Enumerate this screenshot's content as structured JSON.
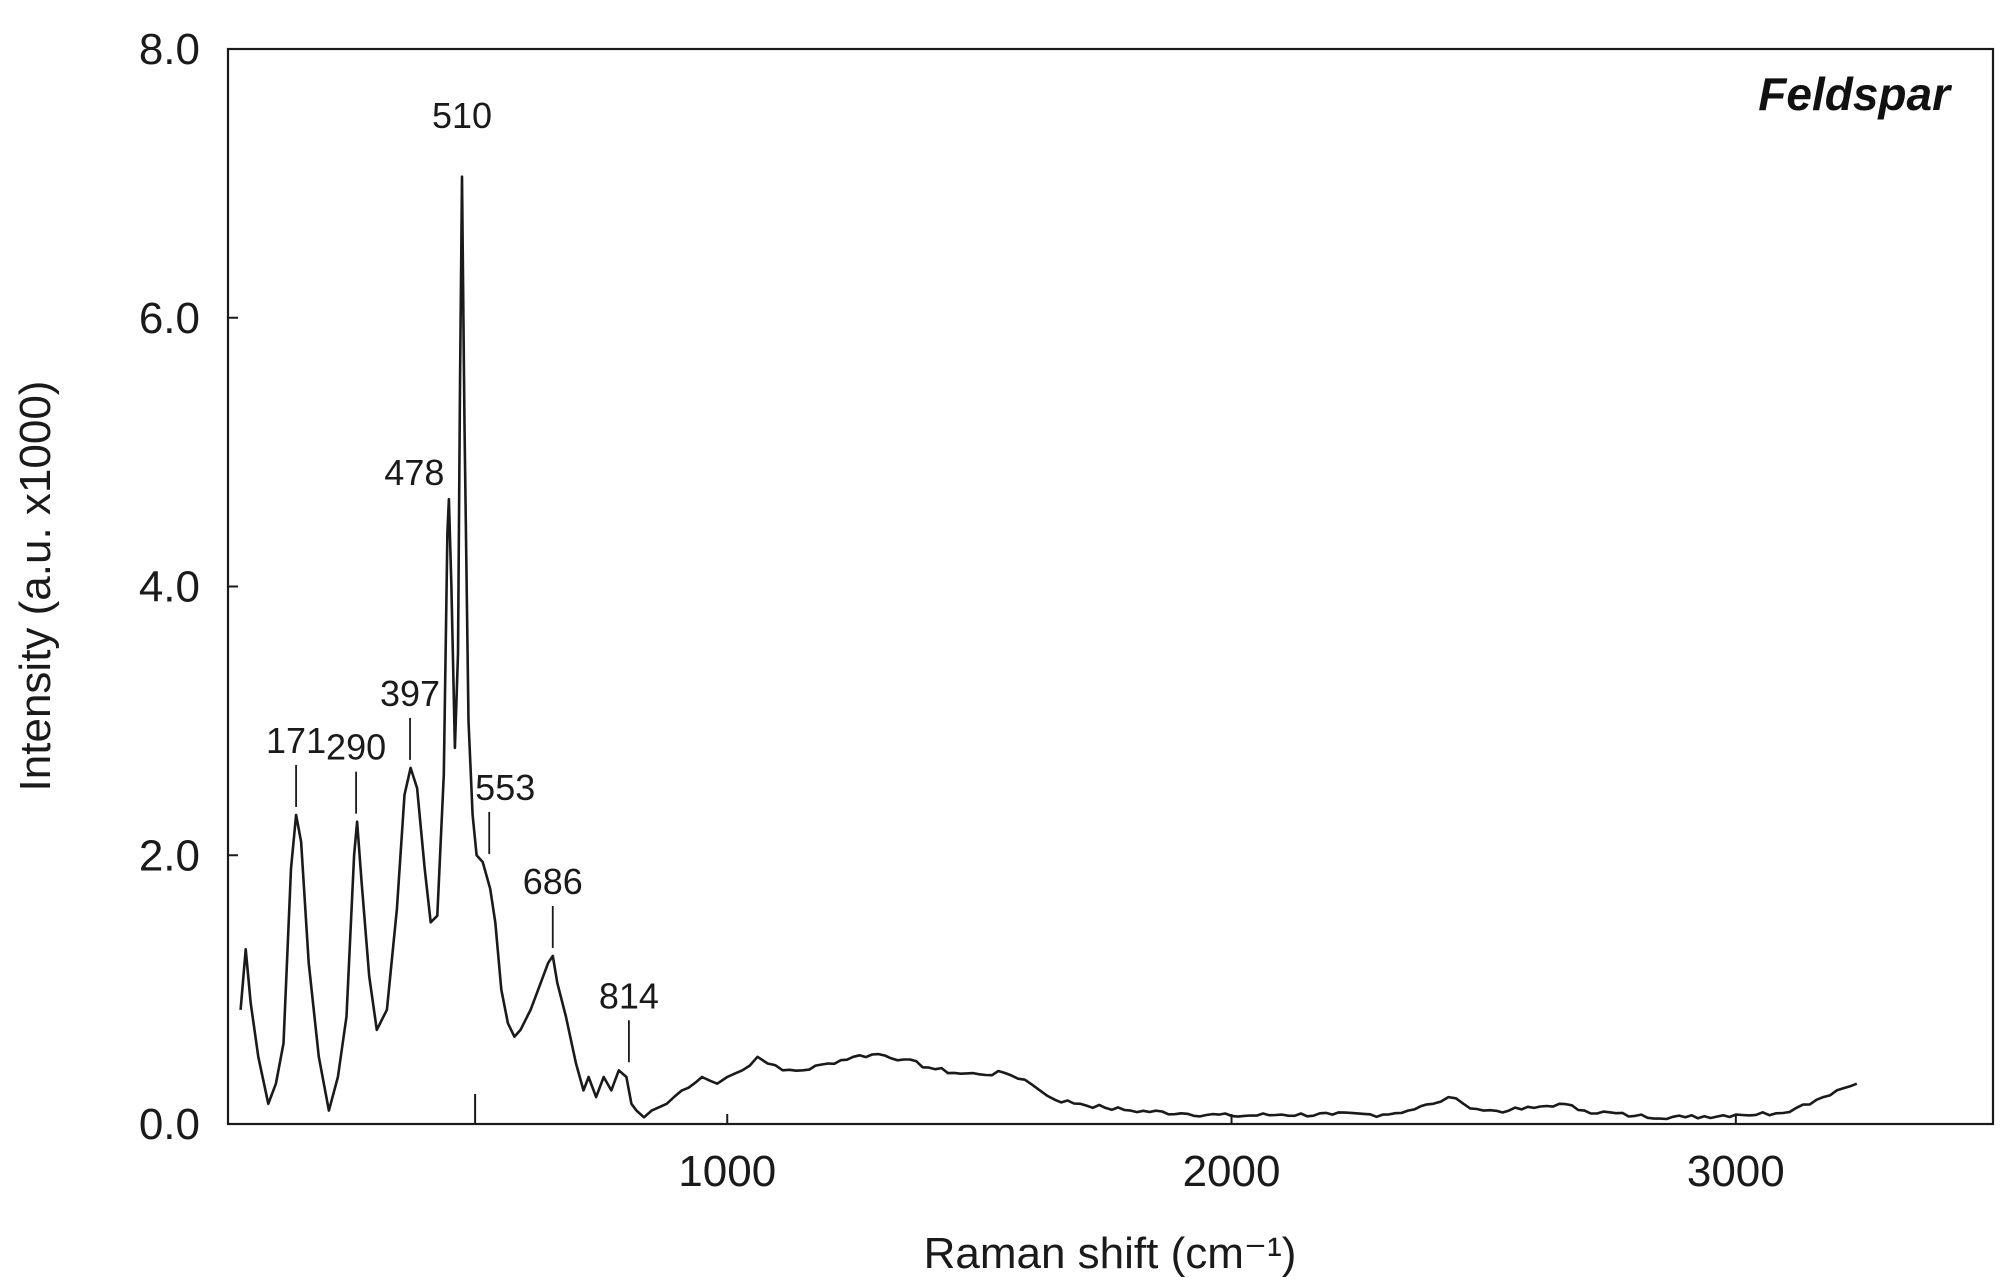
{
  "chart_data": {
    "type": "line",
    "title": "Feldspar",
    "xlabel": "Raman shift (cm⁻¹)",
    "ylabel": "Intensity (a.u. x1000)",
    "xlim": [
      10,
      3510
    ],
    "ylim": [
      0,
      8
    ],
    "x_ticks": [
      1000,
      2000,
      3000
    ],
    "x_tick_labels": [
      "1000",
      "2000",
      "3000"
    ],
    "y_ticks": [
      0,
      2,
      4,
      6,
      8
    ],
    "y_tick_labels": [
      "0.0",
      "2.0",
      "4.0",
      "6.0",
      "8.0"
    ],
    "grid": false,
    "legend": "none",
    "line_color": "#1a1a1a",
    "peak_labels": [
      {
        "label": "171",
        "x": 145,
        "y": 2.3
      },
      {
        "label": "290",
        "x": 264,
        "y": 2.25
      },
      {
        "label": "397",
        "x": 371,
        "y": 2.65
      },
      {
        "label": "478",
        "x": 439,
        "y": 4.65
      },
      {
        "label": "510",
        "x": 474,
        "y": 7.05
      },
      {
        "label": "553",
        "x": 528,
        "y": 1.95
      },
      {
        "label": "686",
        "x": 654,
        "y": 1.25
      },
      {
        "label": "814",
        "x": 805,
        "y": 0.4
      }
    ],
    "series": [
      {
        "values": [
          [
            35,
            0.85
          ],
          [
            45,
            1.3
          ],
          [
            55,
            0.9
          ],
          [
            70,
            0.5
          ],
          [
            90,
            0.15
          ],
          [
            105,
            0.3
          ],
          [
            120,
            0.6
          ],
          [
            135,
            1.9
          ],
          [
            145,
            2.3
          ],
          [
            155,
            2.1
          ],
          [
            170,
            1.2
          ],
          [
            190,
            0.5
          ],
          [
            210,
            0.1
          ],
          [
            228,
            0.35
          ],
          [
            245,
            0.8
          ],
          [
            260,
            2.0
          ],
          [
            266,
            2.25
          ],
          [
            275,
            1.8
          ],
          [
            290,
            1.1
          ],
          [
            305,
            0.7
          ],
          [
            325,
            0.85
          ],
          [
            345,
            1.6
          ],
          [
            360,
            2.45
          ],
          [
            372,
            2.65
          ],
          [
            385,
            2.5
          ],
          [
            400,
            1.9
          ],
          [
            412,
            1.5
          ],
          [
            425,
            1.55
          ],
          [
            438,
            2.6
          ],
          [
            445,
            4.4
          ],
          [
            448,
            4.65
          ],
          [
            453,
            4.0
          ],
          [
            460,
            2.8
          ],
          [
            466,
            3.5
          ],
          [
            470,
            5.5
          ],
          [
            474,
            7.05
          ],
          [
            479,
            5.2
          ],
          [
            487,
            3.0
          ],
          [
            495,
            2.3
          ],
          [
            503,
            2.0
          ],
          [
            515,
            1.95
          ],
          [
            530,
            1.75
          ],
          [
            540,
            1.5
          ],
          [
            552,
            1.0
          ],
          [
            565,
            0.75
          ],
          [
            578,
            0.65
          ],
          [
            590,
            0.7
          ],
          [
            610,
            0.85
          ],
          [
            630,
            1.05
          ],
          [
            645,
            1.2
          ],
          [
            654,
            1.25
          ],
          [
            663,
            1.05
          ],
          [
            680,
            0.8
          ],
          [
            700,
            0.45
          ],
          [
            715,
            0.25
          ],
          [
            725,
            0.35
          ],
          [
            740,
            0.2
          ],
          [
            755,
            0.35
          ],
          [
            770,
            0.25
          ],
          [
            785,
            0.4
          ],
          [
            800,
            0.35
          ],
          [
            810,
            0.15
          ],
          [
            820,
            0.1
          ],
          [
            835,
            0.05
          ],
          [
            850,
            0.1
          ],
          [
            880,
            0.15
          ],
          [
            910,
            0.25
          ],
          [
            950,
            0.35
          ],
          [
            980,
            0.3
          ],
          [
            1000,
            0.35
          ],
          [
            1030,
            0.4
          ],
          [
            1060,
            0.5
          ],
          [
            1080,
            0.45
          ],
          [
            1110,
            0.4
          ],
          [
            1150,
            0.4
          ],
          [
            1200,
            0.45
          ],
          [
            1250,
            0.5
          ],
          [
            1300,
            0.52
          ],
          [
            1350,
            0.48
          ],
          [
            1400,
            0.42
          ],
          [
            1450,
            0.38
          ],
          [
            1500,
            0.37
          ],
          [
            1550,
            0.38
          ],
          [
            1590,
            0.33
          ],
          [
            1620,
            0.25
          ],
          [
            1650,
            0.18
          ],
          [
            1700,
            0.15
          ],
          [
            1750,
            0.12
          ],
          [
            1800,
            0.1
          ],
          [
            1900,
            0.08
          ],
          [
            2000,
            0.06
          ],
          [
            2100,
            0.07
          ],
          [
            2200,
            0.07
          ],
          [
            2300,
            0.07
          ],
          [
            2350,
            0.1
          ],
          [
            2400,
            0.15
          ],
          [
            2430,
            0.2
          ],
          [
            2460,
            0.15
          ],
          [
            2500,
            0.1
          ],
          [
            2550,
            0.1
          ],
          [
            2600,
            0.12
          ],
          [
            2650,
            0.15
          ],
          [
            2700,
            0.1
          ],
          [
            2800,
            0.06
          ],
          [
            2900,
            0.05
          ],
          [
            3000,
            0.07
          ],
          [
            3080,
            0.08
          ],
          [
            3120,
            0.12
          ],
          [
            3160,
            0.18
          ],
          [
            3200,
            0.25
          ],
          [
            3240,
            0.3
          ]
        ]
      }
    ]
  }
}
